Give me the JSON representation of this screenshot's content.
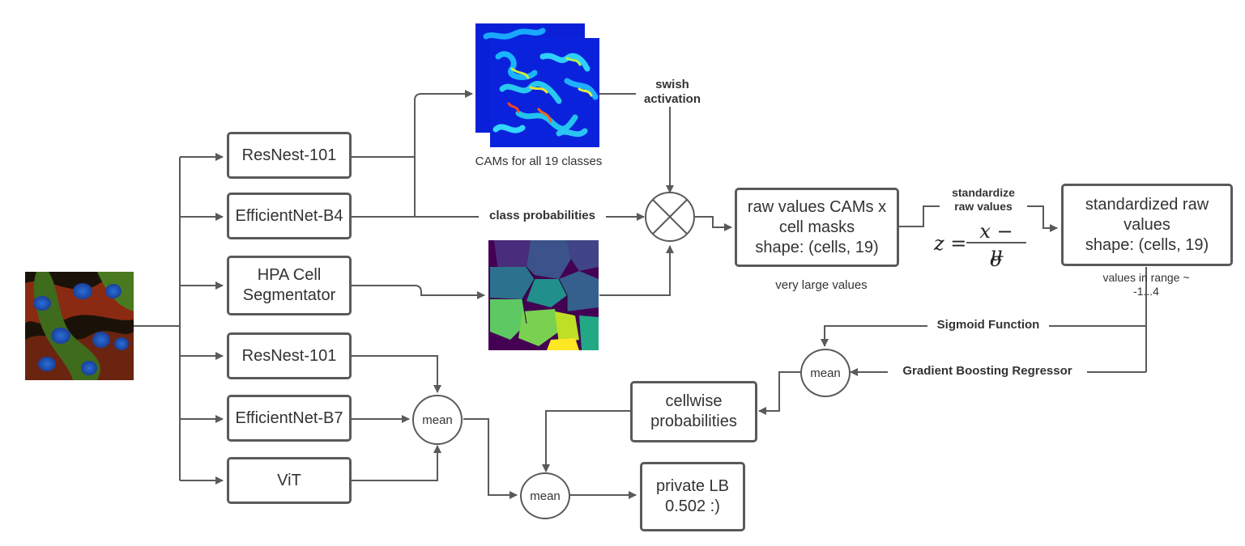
{
  "models": {
    "resnest_1": "ResNest-101",
    "efficientnet_b4": "EfficientNet-B4",
    "hpa_segmentator": "HPA Cell\nSegmentator",
    "resnest_2": "ResNest-101",
    "efficientnet_b7": "EfficientNet-B7",
    "vit": "ViT"
  },
  "labels": {
    "cams_caption": "CAMs for all 19 classes",
    "swish": "swish\nactivation",
    "class_probabilities": "class probabilities",
    "raw_values_box": "raw values CAMs x\ncell masks\nshape: (cells, 19)",
    "very_large": "very large values",
    "standardize": "standardize\nraw values",
    "formula_lhs": "z =",
    "formula_num": "x − μ",
    "formula_den": "σ",
    "standardized_box": "standardized raw\nvalues\nshape: (cells, 19)",
    "values_range": "values in range ~\n-1...4",
    "sigmoid": "Sigmoid Function",
    "gbr": "Gradient Boosting Regressor",
    "mean_1": "mean",
    "mean_2": "mean",
    "mean_3": "mean",
    "cellwise": "cellwise\nprobabilities",
    "private_lb": "private LB\n0.502 :)"
  },
  "icons": {
    "input": "microscopy-cell-image",
    "cams": "cam-heatmap-stack",
    "segmentation": "cell-segmentation-mask",
    "multiply": "multiply-operator-icon"
  },
  "colors": {
    "stroke": "#5a5a5a",
    "text": "#333333"
  }
}
